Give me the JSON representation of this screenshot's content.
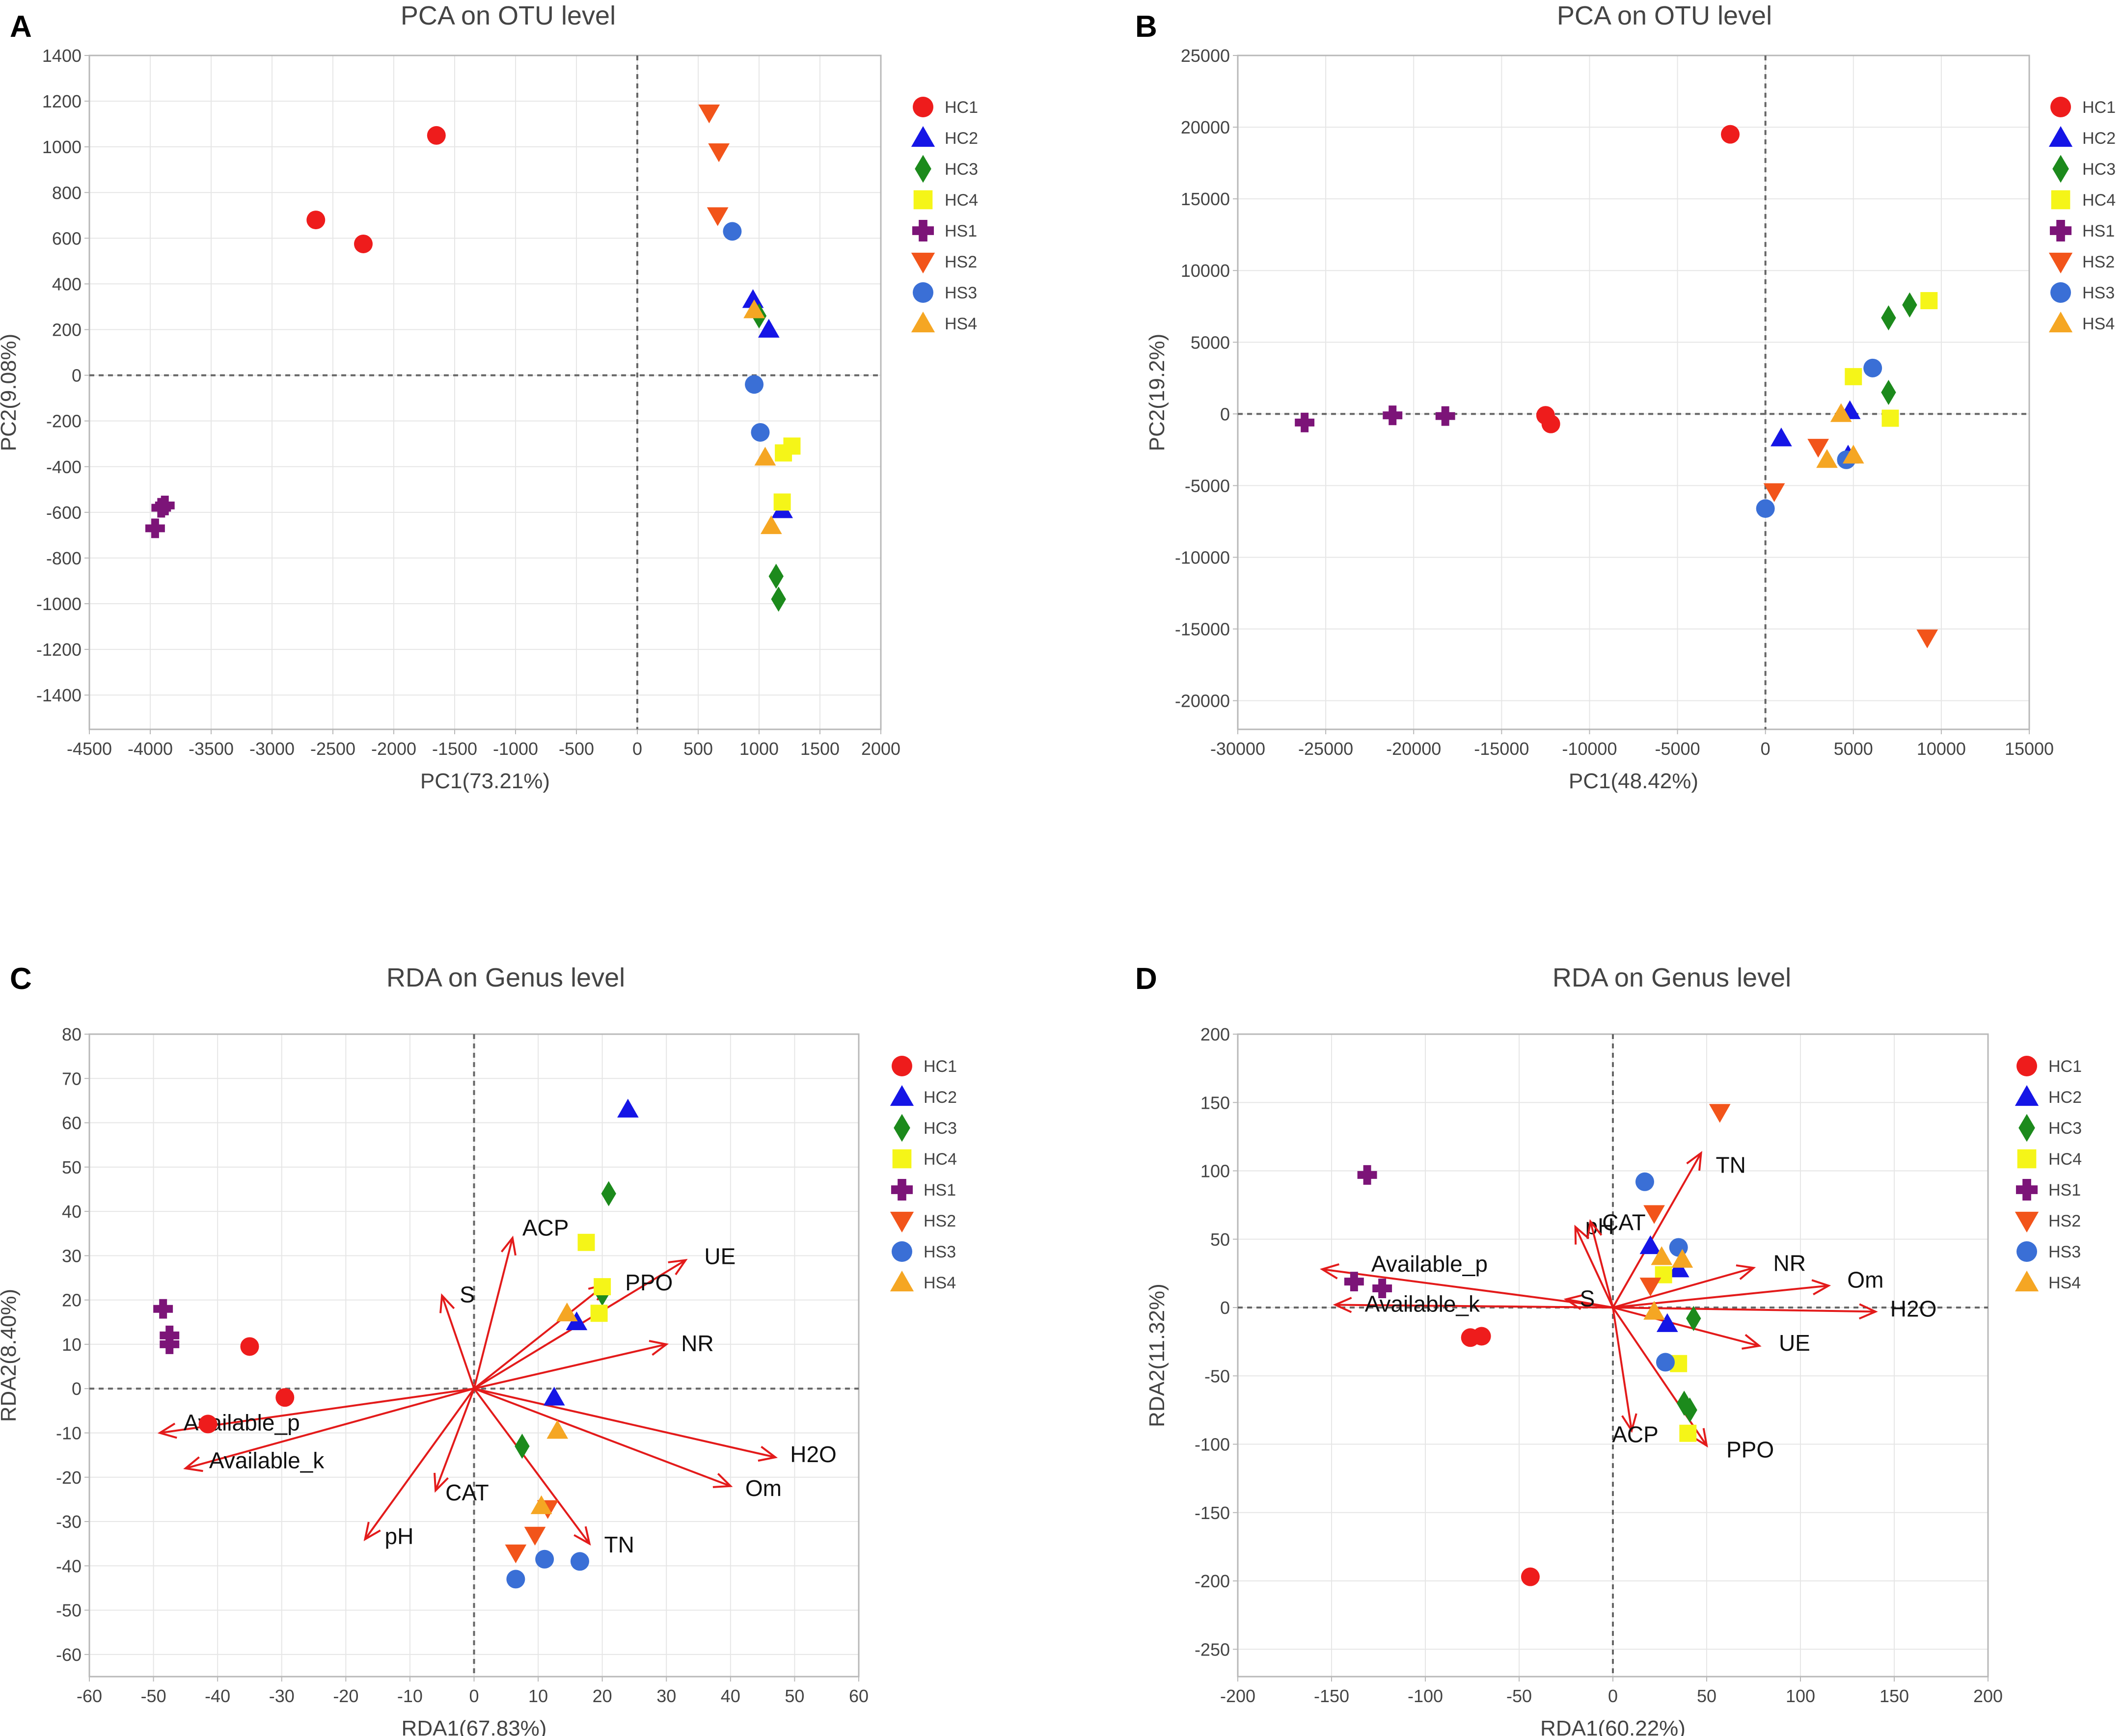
{
  "figure": {
    "colors": {
      "HC1": "#ee1c1c",
      "HC2": "#1515e6",
      "HC3": "#1c8a1c",
      "HC4": "#f5f518",
      "HS1": "#7c1478",
      "HS2": "#f2541a",
      "HS3": "#3a6fd6",
      "HS4": "#f5a623",
      "arrow": "#e31b1b",
      "frame": "#b8b8b8",
      "grid": "#e6e6e6",
      "zero_line": "#666666"
    },
    "marker_shapes": {
      "HC1": "circle",
      "HC2": "triangle-up",
      "HC3": "diamond",
      "HC4": "square",
      "HS1": "plus",
      "HS2": "triangle-down",
      "HS3": "circle",
      "HS4": "triangle-up"
    }
  },
  "chart_data": [
    {
      "panel": "A",
      "type": "scatter",
      "title": "PCA on OTU level",
      "xlabel": "PC1(73.21%)",
      "ylabel": "PC2(9.08%)",
      "xlim": [
        -4500,
        2000
      ],
      "ylim": [
        -1550,
        1400
      ],
      "xticks": [
        -4500,
        -4000,
        -3500,
        -3000,
        -2500,
        -2000,
        -1500,
        -1000,
        -500,
        0,
        500,
        1000,
        1500,
        2000
      ],
      "yticks": [
        -1400,
        -1200,
        -1000,
        -800,
        -600,
        -400,
        -200,
        0,
        200,
        400,
        600,
        800,
        1000,
        1200,
        1400
      ],
      "grid": true,
      "legend": [
        "HC1",
        "HC2",
        "HC3",
        "HC4",
        "HS1",
        "HS2",
        "HS3",
        "HS4"
      ],
      "legend_position": "right",
      "series": [
        {
          "name": "HC1",
          "points": [
            [
              -1650,
              1050
            ],
            [
              -2640,
              680
            ],
            [
              -2250,
              575
            ]
          ]
        },
        {
          "name": "HC2",
          "points": [
            [
              950,
              330
            ],
            [
              1080,
              200
            ],
            [
              1190,
              -590
            ]
          ]
        },
        {
          "name": "HC3",
          "points": [
            [
              1000,
              260
            ],
            [
              1140,
              -880
            ],
            [
              1160,
              -980
            ]
          ]
        },
        {
          "name": "HC4",
          "points": [
            [
              1270,
              -310
            ],
            [
              1200,
              -340
            ],
            [
              1190,
              -555
            ]
          ]
        },
        {
          "name": "HS1",
          "points": [
            [
              -3880,
              -570
            ],
            [
              -3910,
              -580
            ],
            [
              -3960,
              -670
            ]
          ]
        },
        {
          "name": "HS2",
          "points": [
            [
              590,
              1150
            ],
            [
              670,
              980
            ],
            [
              660,
              700
            ]
          ]
        },
        {
          "name": "HS3",
          "points": [
            [
              780,
              630
            ],
            [
              960,
              -40
            ],
            [
              1010,
              -250
            ]
          ]
        },
        {
          "name": "HS4",
          "points": [
            [
              960,
              285
            ],
            [
              1050,
              -360
            ],
            [
              1100,
              -660
            ]
          ]
        }
      ]
    },
    {
      "panel": "B",
      "type": "scatter",
      "title": "PCA on OTU level",
      "xlabel": "PC1(48.42%)",
      "ylabel": "PC2(19.2%)",
      "xlim": [
        -30000,
        15000
      ],
      "ylim": [
        -22000,
        25000
      ],
      "xticks": [
        -30000,
        -25000,
        -20000,
        -15000,
        -10000,
        -5000,
        0,
        5000,
        10000,
        15000
      ],
      "yticks": [
        -20000,
        -15000,
        -10000,
        -5000,
        0,
        5000,
        10000,
        15000,
        20000,
        25000
      ],
      "grid": true,
      "legend": [
        "HC1",
        "HC2",
        "HC3",
        "HC4",
        "HS1",
        "HS2",
        "HS3",
        "HS4"
      ],
      "legend_position": "right",
      "series": [
        {
          "name": "HC1",
          "points": [
            [
              -2000,
              19500
            ],
            [
              -12500,
              -100
            ],
            [
              -12200,
              -700
            ]
          ]
        },
        {
          "name": "HC2",
          "points": [
            [
              900,
              -1700
            ],
            [
              4800,
              200
            ],
            [
              4700,
              -2900
            ]
          ]
        },
        {
          "name": "HC3",
          "points": [
            [
              7000,
              6700
            ],
            [
              8200,
              7600
            ],
            [
              7000,
              1500
            ]
          ]
        },
        {
          "name": "HC4",
          "points": [
            [
              9300,
              7900
            ],
            [
              5000,
              2600
            ],
            [
              7100,
              -300
            ]
          ]
        },
        {
          "name": "HS1",
          "points": [
            [
              -26200,
              -600
            ],
            [
              -21200,
              -100
            ],
            [
              -18200,
              -150
            ]
          ]
        },
        {
          "name": "HS2",
          "points": [
            [
              500,
              -5400
            ],
            [
              3000,
              -2300
            ],
            [
              9200,
              -15600
            ]
          ]
        },
        {
          "name": "HS3",
          "points": [
            [
              6100,
              3200
            ],
            [
              4600,
              -3200
            ],
            [
              0,
              -6600
            ]
          ]
        },
        {
          "name": "HS4",
          "points": [
            [
              4300,
              0
            ],
            [
              3500,
              -3200
            ],
            [
              5000,
              -2900
            ]
          ]
        }
      ]
    },
    {
      "panel": "C",
      "type": "scatter",
      "title": "RDA on Genus level",
      "xlabel": "RDA1(67.83%)",
      "ylabel": "RDA2(8.40%)",
      "xlim": [
        -60,
        60
      ],
      "ylim": [
        -65,
        80
      ],
      "xticks": [
        -60,
        -50,
        -40,
        -30,
        -20,
        -10,
        0,
        10,
        20,
        30,
        40,
        50,
        60
      ],
      "yticks": [
        -60,
        -50,
        -40,
        -30,
        -20,
        -10,
        0,
        10,
        20,
        30,
        40,
        50,
        60,
        70,
        80
      ],
      "grid": true,
      "legend": [
        "HC1",
        "HC2",
        "HC3",
        "HC4",
        "HS1",
        "HS2",
        "HS3",
        "HS4"
      ],
      "legend_position": "right",
      "series": [
        {
          "name": "HC1",
          "points": [
            [
              -35,
              9.5
            ],
            [
              -29.5,
              -2
            ],
            [
              -41.5,
              -8
            ]
          ]
        },
        {
          "name": "HC2",
          "points": [
            [
              24,
              63
            ],
            [
              16,
              15
            ],
            [
              12.5,
              -2
            ]
          ]
        },
        {
          "name": "HC3",
          "points": [
            [
              21,
              44
            ],
            [
              20,
              21.5
            ],
            [
              7.5,
              -13
            ]
          ]
        },
        {
          "name": "HC4",
          "points": [
            [
              17.5,
              33
            ],
            [
              20,
              23
            ],
            [
              19.5,
              17
            ]
          ]
        },
        {
          "name": "HS1",
          "points": [
            [
              -48.5,
              18
            ],
            [
              -47.5,
              12
            ],
            [
              -47.5,
              10
            ]
          ]
        },
        {
          "name": "HS2",
          "points": [
            [
              11.5,
              -27
            ],
            [
              9.5,
              -33
            ],
            [
              6.5,
              -37
            ]
          ]
        },
        {
          "name": "HS3",
          "points": [
            [
              6.5,
              -43
            ],
            [
              11,
              -38.5
            ],
            [
              16.5,
              -39
            ]
          ]
        },
        {
          "name": "HS4",
          "points": [
            [
              14.5,
              17
            ],
            [
              13,
              -9.5
            ],
            [
              10.5,
              -26.5
            ]
          ]
        }
      ],
      "arrows": [
        {
          "label": "UE",
          "x": 33,
          "y": 29
        },
        {
          "label": "ACP",
          "x": 6,
          "y": 34
        },
        {
          "label": "PPO",
          "x": 20.5,
          "y": 23.5
        },
        {
          "label": "S",
          "x": -5,
          "y": 21
        },
        {
          "label": "NR",
          "x": 30,
          "y": 10
        },
        {
          "label": "Available_p",
          "x": -49,
          "y": -10
        },
        {
          "label": "Available_k",
          "x": -45,
          "y": -18
        },
        {
          "label": "H2O",
          "x": 47,
          "y": -15.5
        },
        {
          "label": "Om",
          "x": 40,
          "y": -22
        },
        {
          "label": "CAT",
          "x": -6,
          "y": -23
        },
        {
          "label": "pH",
          "x": -17,
          "y": -34
        },
        {
          "label": "TN",
          "x": 18,
          "y": -35
        }
      ]
    },
    {
      "panel": "D",
      "type": "scatter",
      "title": "RDA on Genus level",
      "xlabel": "RDA1(60.22%)",
      "ylabel": "RDA2(11.32%)",
      "xlim": [
        -200,
        200
      ],
      "ylim": [
        -270,
        200
      ],
      "xticks": [
        -200,
        -150,
        -100,
        -50,
        0,
        50,
        100,
        150,
        200
      ],
      "yticks": [
        -250,
        -200,
        -150,
        -100,
        -50,
        0,
        50,
        100,
        150,
        200
      ],
      "grid": true,
      "legend": [
        "HC1",
        "HC2",
        "HC3",
        "HC4",
        "HS1",
        "HS2",
        "HS3",
        "HS4"
      ],
      "legend_position": "right",
      "series": [
        {
          "name": "HC1",
          "points": [
            [
              -44,
              -197
            ],
            [
              -70,
              -21
            ],
            [
              -76,
              -22
            ]
          ]
        },
        {
          "name": "HC2",
          "points": [
            [
              20,
              45
            ],
            [
              29,
              -12
            ],
            [
              35,
              28
            ]
          ]
        },
        {
          "name": "HC3",
          "points": [
            [
              38,
              -70
            ],
            [
              41,
              -75
            ],
            [
              43,
              -8
            ]
          ]
        },
        {
          "name": "HC4",
          "points": [
            [
              27,
              24
            ],
            [
              35,
              -41
            ],
            [
              40,
              -92
            ]
          ]
        },
        {
          "name": "HS1",
          "points": [
            [
              -131,
              97
            ],
            [
              -138,
              19
            ],
            [
              -123,
              14
            ]
          ]
        },
        {
          "name": "HS2",
          "points": [
            [
              57,
              143
            ],
            [
              22,
              69
            ],
            [
              20,
              16
            ]
          ]
        },
        {
          "name": "HS3",
          "points": [
            [
              17,
              92
            ],
            [
              35,
              44
            ],
            [
              28,
              -40
            ]
          ]
        },
        {
          "name": "HS4",
          "points": [
            [
              37,
              35
            ],
            [
              26,
              37
            ],
            [
              22,
              -3
            ]
          ]
        }
      ],
      "arrows": [
        {
          "label": "TN",
          "x": 47,
          "y": 113
        },
        {
          "label": "pH",
          "x": -20,
          "y": 59
        },
        {
          "label": "CAT",
          "x": -12,
          "y": 63
        },
        {
          "label": "Available_p",
          "x": -155,
          "y": 28
        },
        {
          "label": "Available_k",
          "x": -148,
          "y": 2
        },
        {
          "label": "S",
          "x": -25,
          "y": 6
        },
        {
          "label": "NR",
          "x": 75,
          "y": 29
        },
        {
          "label": "Om",
          "x": 115,
          "y": 16
        },
        {
          "label": "H2O",
          "x": 140,
          "y": -3
        },
        {
          "label": "UE",
          "x": 78,
          "y": -28
        },
        {
          "label": "ACP",
          "x": 10,
          "y": -90
        },
        {
          "label": "PPO",
          "x": 50,
          "y": -101
        }
      ]
    }
  ]
}
